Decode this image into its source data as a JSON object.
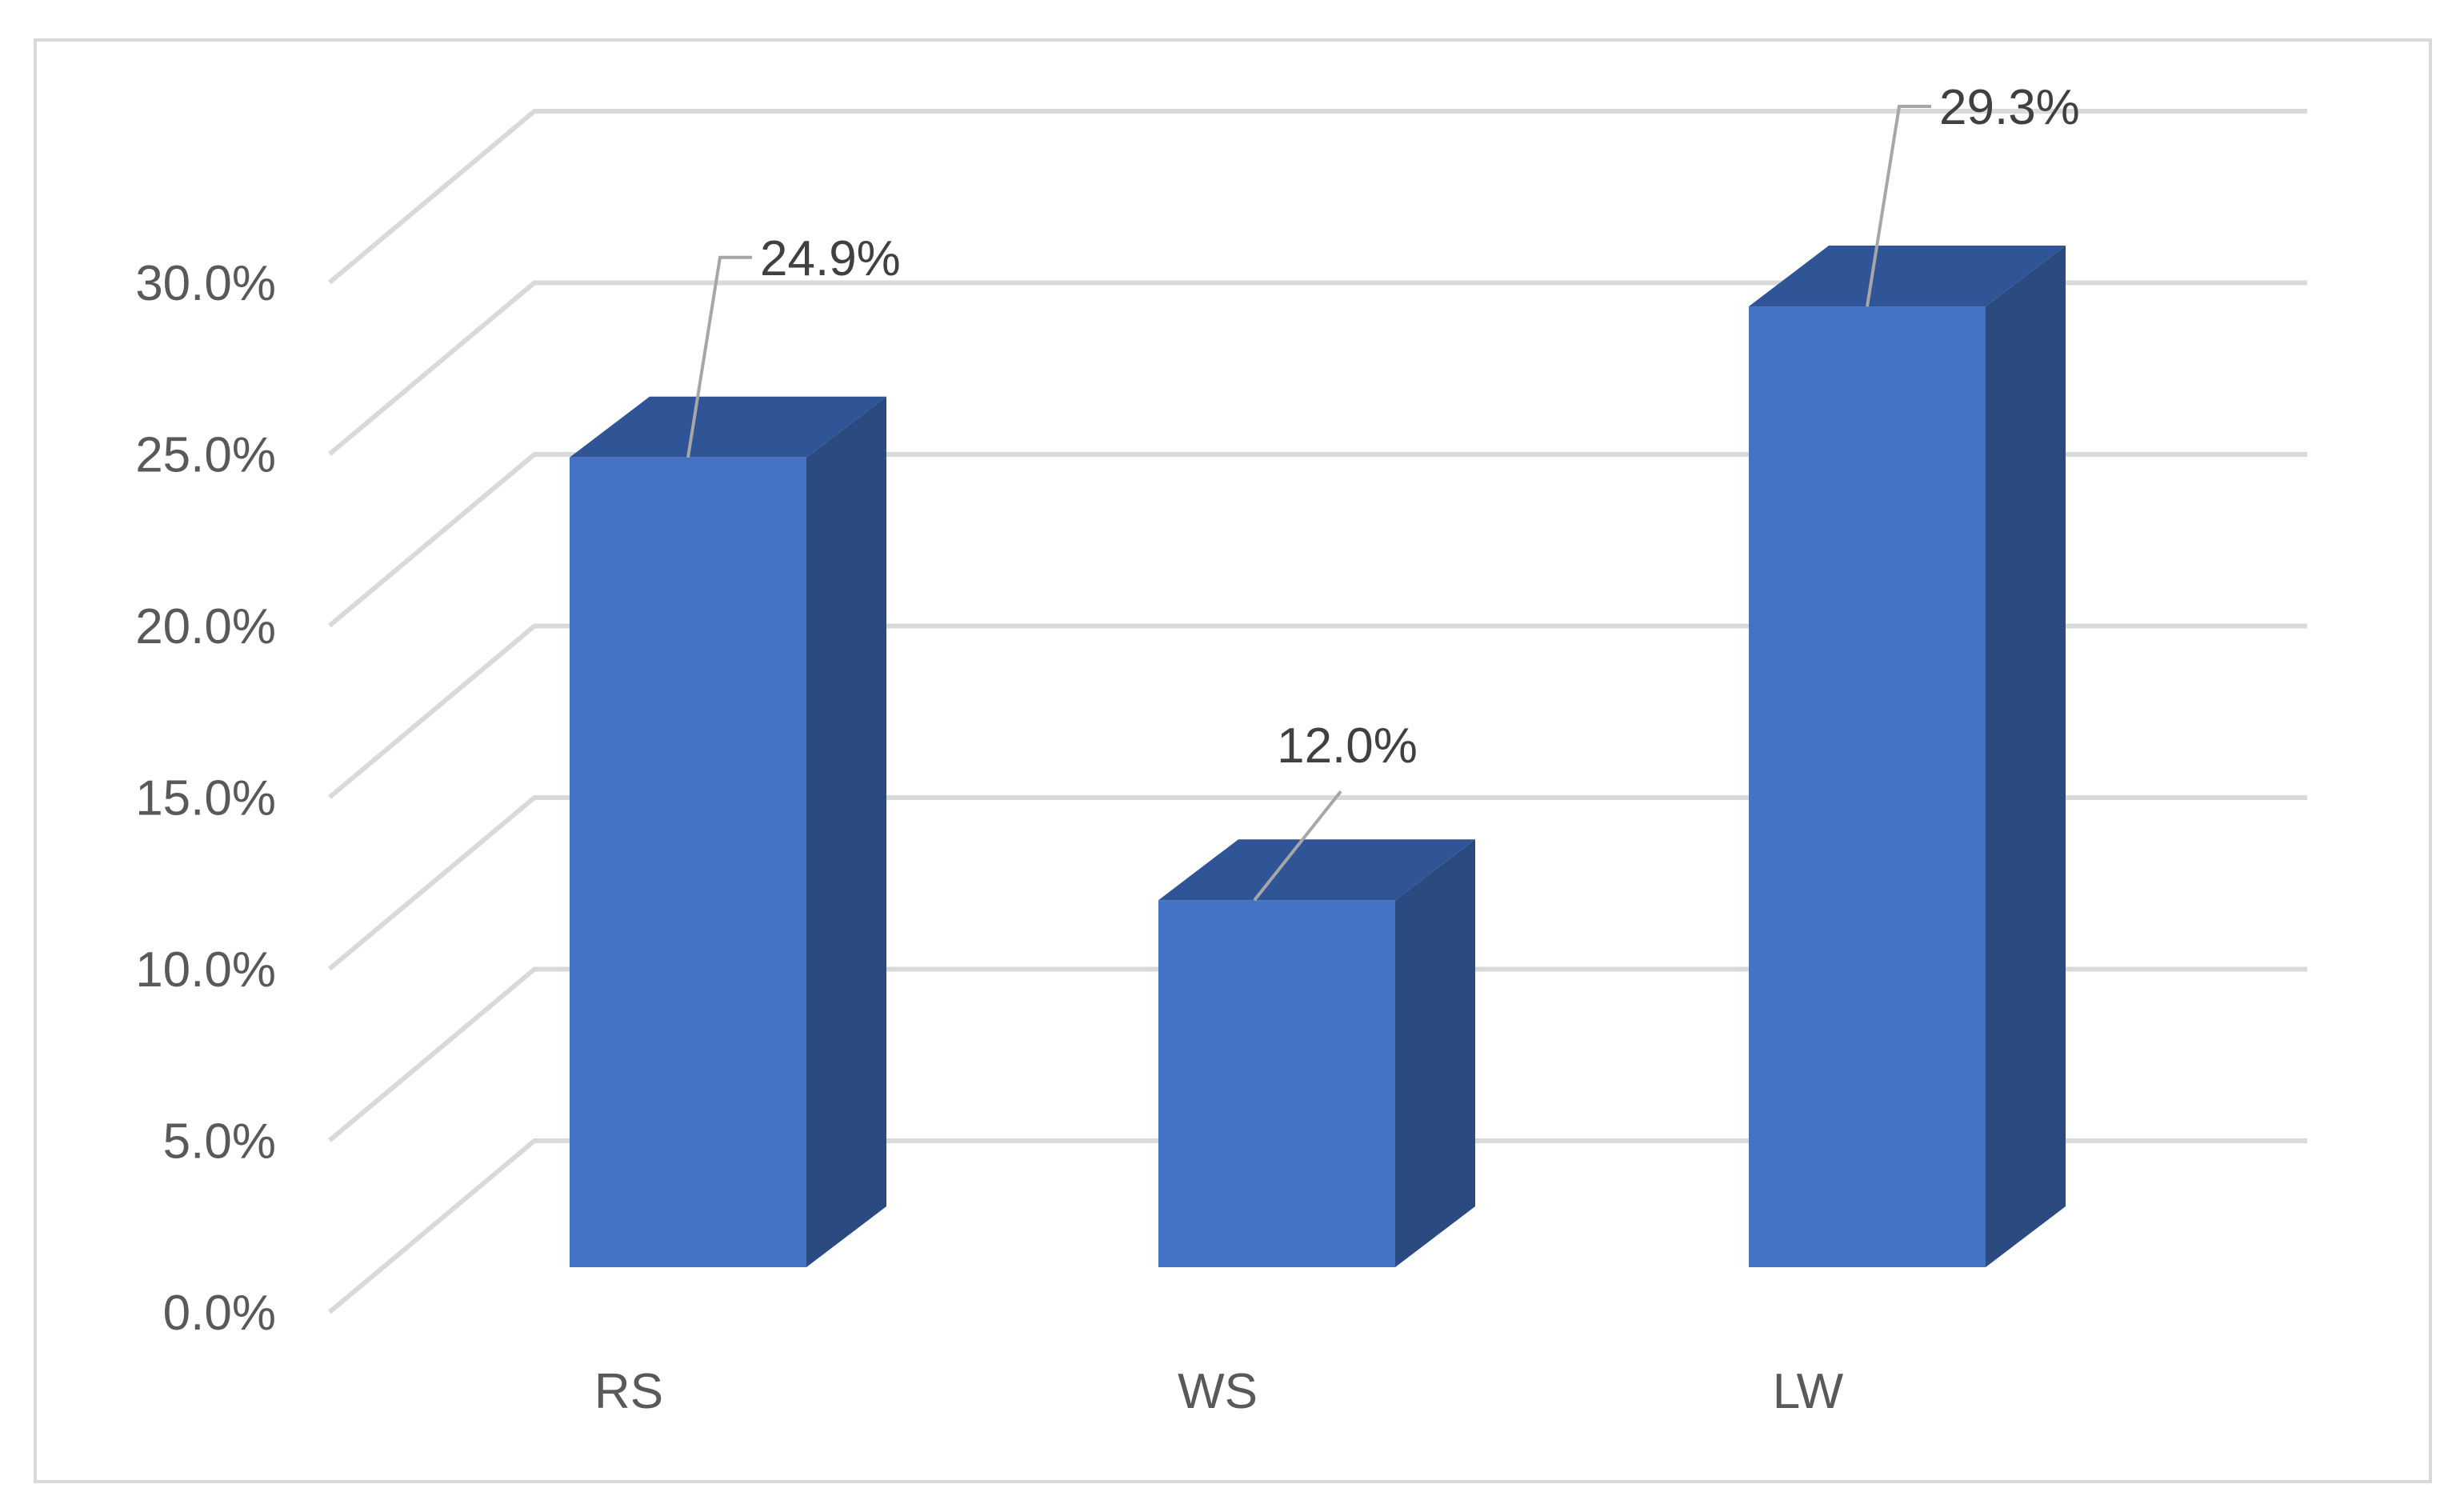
{
  "chart_data": {
    "type": "bar",
    "style": "3d-column",
    "title": "",
    "xlabel": "",
    "ylabel": "",
    "categories": [
      "RS",
      "WS",
      "LW"
    ],
    "values": [
      24.9,
      12.0,
      29.3
    ],
    "data_labels": [
      "24.9%",
      "12.0%",
      "29.3%"
    ],
    "ylim": [
      0,
      30
    ],
    "y_ticks": [
      0,
      5,
      10,
      15,
      20,
      25,
      30
    ],
    "y_tick_labels": [
      "0.0%",
      "5.0%",
      "10.0%",
      "15.0%",
      "20.0%",
      "25.0%",
      "30.0%"
    ],
    "grid": true,
    "legend": "none",
    "colors": {
      "bar_front": "#4472C4",
      "bar_side": "#2B4A7F",
      "bar_top": "#2F5597",
      "grid": "#D9D9D9",
      "frame": "#D9D9D9",
      "leader": "#A6A6A6",
      "text": "#595959"
    }
  }
}
